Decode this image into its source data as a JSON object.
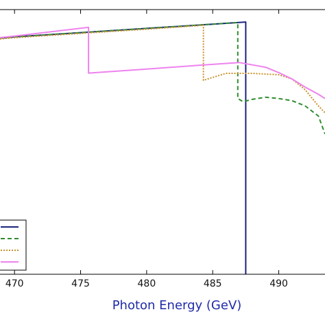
{
  "chart_data": {
    "type": "line",
    "title": "",
    "xlabel": "Photon Energy (GeV)",
    "ylabel": "",
    "xlim": [
      468.9,
      493.5
    ],
    "ylim": [
      0.0,
      1.0
    ],
    "xticks": [
      "470",
      "475",
      "480",
      "485",
      "490"
    ],
    "xtick_values": [
      470,
      475,
      480,
      485,
      490
    ],
    "grid": false,
    "legend_position": "bottom-left",
    "colors": {
      "axis_title": "#1f2aa8",
      "axes": "#000000"
    },
    "series": [
      {
        "color": "#1a237e",
        "dash": "solid",
        "x": [
          468.9,
          470,
          475,
          480,
          485,
          487.5,
          487.5
        ],
        "y": [
          0.892,
          0.897,
          0.913,
          0.929,
          0.945,
          0.953,
          0.0
        ]
      },
      {
        "color": "#2e8b2e",
        "dash": "dashed",
        "x": [
          468.9,
          470,
          475,
          480,
          485,
          486.9,
          486.9,
          487.3,
          488,
          489,
          490,
          491,
          492,
          493,
          493.5
        ],
        "y": [
          0.892,
          0.897,
          0.913,
          0.929,
          0.945,
          0.951,
          0.664,
          0.652,
          0.661,
          0.669,
          0.664,
          0.656,
          0.636,
          0.598,
          0.53
        ]
      },
      {
        "color": "#c8902a",
        "dash": "dotted",
        "x": [
          468.9,
          470,
          475,
          480,
          484.3,
          484.3,
          486,
          488,
          490,
          491,
          492,
          493,
          493.5
        ],
        "y": [
          0.889,
          0.894,
          0.91,
          0.926,
          0.941,
          0.733,
          0.759,
          0.759,
          0.754,
          0.738,
          0.697,
          0.636,
          0.61
        ]
      },
      {
        "color": "#ee82ee",
        "dash": "solid",
        "x": [
          468.9,
          470,
          475.6,
          475.6,
          480,
          484,
          487,
          489,
          490,
          491,
          492,
          493,
          493.5
        ],
        "y": [
          0.894,
          0.9,
          0.933,
          0.76,
          0.775,
          0.79,
          0.8,
          0.782,
          0.762,
          0.738,
          0.707,
          0.68,
          0.664
        ]
      }
    ]
  }
}
